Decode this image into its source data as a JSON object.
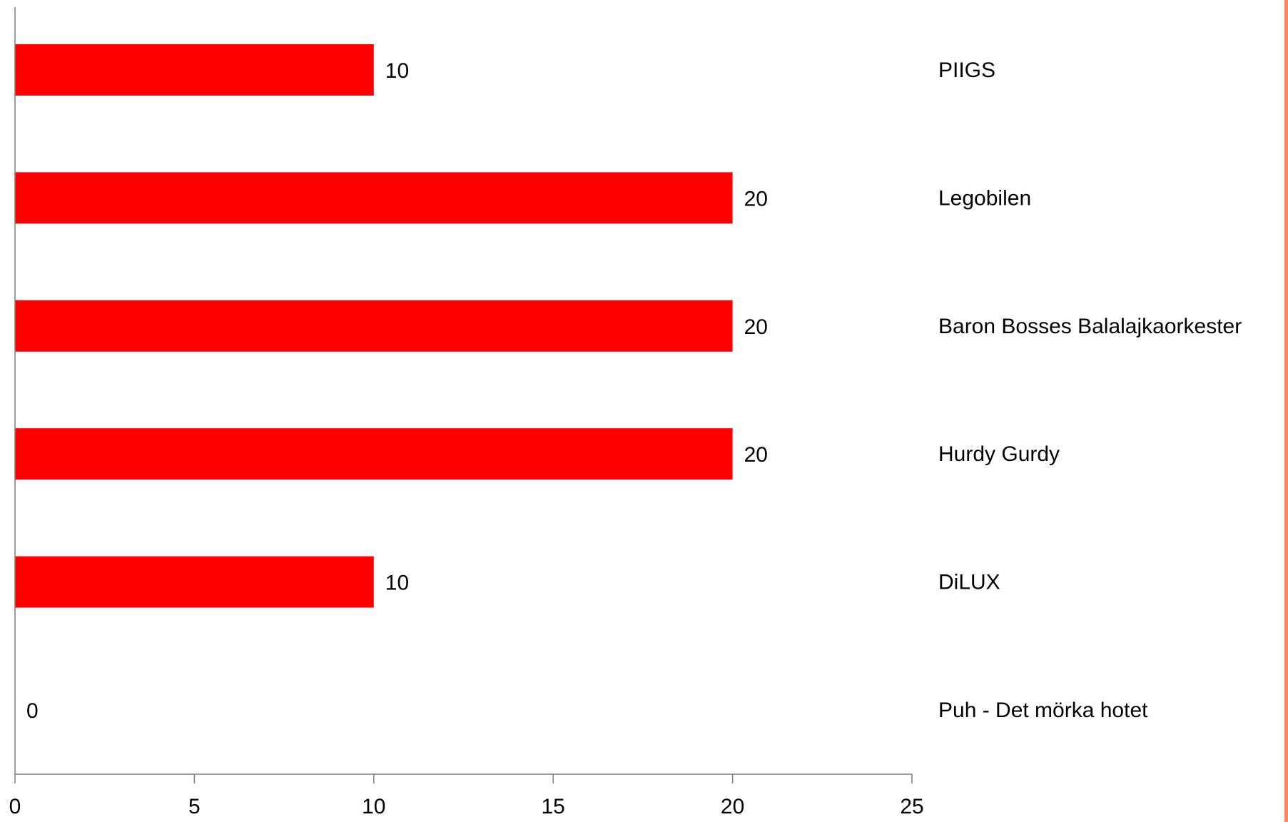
{
  "chart_data": {
    "type": "bar",
    "orientation": "horizontal",
    "categories": [
      "PIIGS",
      "Legobilen",
      "Baron Bosses Balalajkaorkester",
      "Hurdy Gurdy",
      "DiLUX",
      "Puh - Det mörka hotet"
    ],
    "values": [
      10,
      20,
      20,
      20,
      10,
      0
    ],
    "xlim": [
      0,
      25
    ],
    "xticks": [
      "0",
      "5",
      "10",
      "15",
      "20",
      "25"
    ],
    "grid": false,
    "legend": "none",
    "data_labels": true,
    "category_labels_position": "right",
    "bar_color": "#ff0000"
  },
  "colors": {
    "bar": "#ff0000",
    "axis": "#7f7f7f",
    "edge_strip": "#f28c5c"
  }
}
